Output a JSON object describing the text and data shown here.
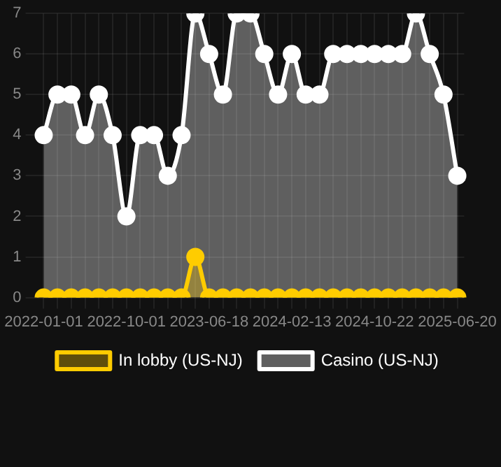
{
  "chart_data": {
    "type": "area",
    "categories": [
      "2022-01-01",
      null,
      null,
      null,
      null,
      null,
      "2022-10-01",
      null,
      null,
      null,
      null,
      null,
      "2023-06-18",
      null,
      null,
      null,
      null,
      null,
      "2024-02-13",
      null,
      null,
      null,
      null,
      null,
      "2024-10-22",
      null,
      null,
      null,
      null,
      null,
      "2025-06-20"
    ],
    "series": [
      {
        "name": "In lobby (US-NJ)",
        "color": "#ffcc00",
        "values": [
          0,
          0,
          0,
          0,
          0,
          0,
          0,
          0,
          0,
          0,
          0,
          1,
          0,
          0,
          0,
          0,
          0,
          0,
          0,
          0,
          0,
          0,
          0,
          0,
          0,
          0,
          0,
          0,
          0,
          0,
          0
        ]
      },
      {
        "name": "Casino (US-NJ)",
        "color": "#ffffff",
        "values": [
          4,
          5,
          5,
          4,
          5,
          4,
          2,
          4,
          4,
          3,
          4,
          7,
          6,
          5,
          7,
          7,
          6,
          5,
          6,
          5,
          5,
          6,
          6,
          6,
          6,
          6,
          6,
          7,
          6,
          5,
          3
        ]
      }
    ],
    "ylim": [
      0,
      7
    ],
    "yticks": [
      0,
      1,
      2,
      3,
      4,
      5,
      6,
      7
    ],
    "grid": true,
    "legend": "bottom",
    "marker": "circle",
    "line_style": "solid"
  }
}
